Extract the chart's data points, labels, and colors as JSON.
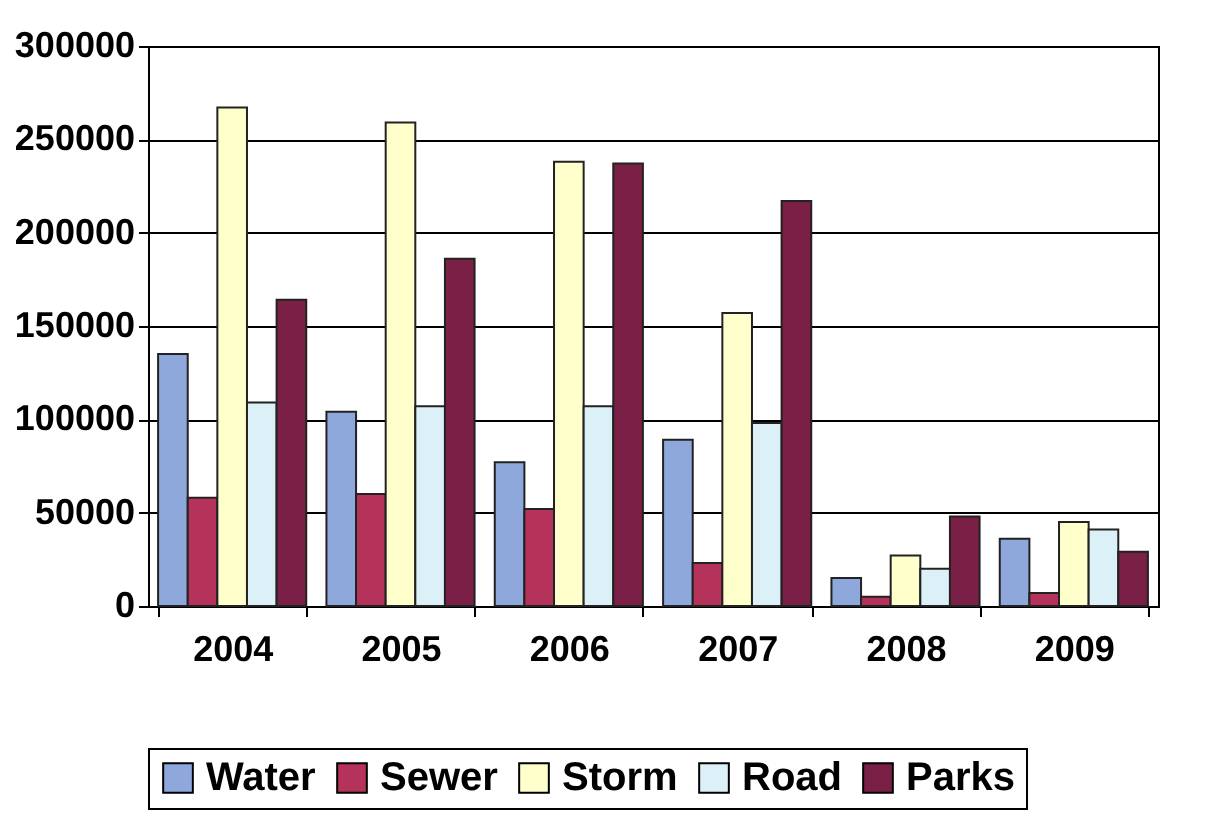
{
  "chart_data": {
    "type": "bar",
    "categories": [
      "2004",
      "2005",
      "2006",
      "2007",
      "2008",
      "2009"
    ],
    "series": [
      {
        "name": "Water",
        "color": "#8fa8dc",
        "values": [
          135000,
          104000,
          77000,
          89000,
          15000,
          36000
        ]
      },
      {
        "name": "Sewer",
        "color": "#b5335a",
        "values": [
          58000,
          60000,
          52000,
          23000,
          5000,
          7000
        ]
      },
      {
        "name": "Storm",
        "color": "#ffffcc",
        "values": [
          267000,
          259000,
          238000,
          157000,
          27000,
          45000
        ]
      },
      {
        "name": "Road",
        "color": "#dcf0f8",
        "values": [
          109000,
          107000,
          107000,
          98000,
          20000,
          41000
        ]
      },
      {
        "name": "Parks",
        "color": "#7a1f45",
        "values": [
          164000,
          186000,
          237000,
          217000,
          48000,
          29000
        ]
      }
    ],
    "ylim": [
      0,
      300000
    ],
    "yticks": [
      0,
      50000,
      100000,
      150000,
      200000,
      250000,
      300000
    ],
    "grid": "y",
    "legend": "bottom"
  }
}
